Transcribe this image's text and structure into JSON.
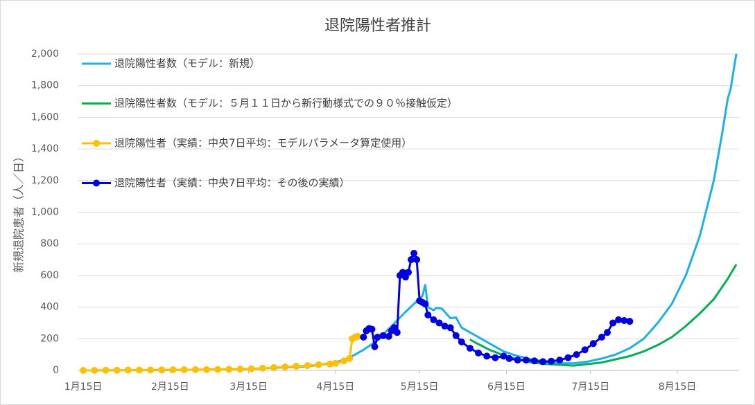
{
  "chart_data": {
    "type": "line",
    "title": "退院陽性者推計",
    "y_label": "新規退院患者（人／日）",
    "xlim": [
      -2,
      234
    ],
    "ylim": [
      0,
      2000
    ],
    "xticks": [
      {
        "value": 0,
        "label": "1月15日"
      },
      {
        "value": 31,
        "label": "2月15日"
      },
      {
        "value": 59,
        "label": "3月15日"
      },
      {
        "value": 90,
        "label": "4月15日"
      },
      {
        "value": 120,
        "label": "5月15日"
      },
      {
        "value": 151,
        "label": "6月15日"
      },
      {
        "value": 181,
        "label": "7月15日"
      },
      {
        "value": 212,
        "label": "8月15日"
      }
    ],
    "yticks": [
      0,
      {
        "value": 200,
        "label": "200"
      },
      {
        "value": 400,
        "label": "400"
      },
      {
        "value": 600,
        "label": "600"
      },
      {
        "value": 800,
        "label": "800"
      },
      {
        "value": 1000,
        "label": "1,000"
      },
      {
        "value": 1200,
        "label": "1,200"
      },
      {
        "value": 1400,
        "label": "1,400"
      },
      {
        "value": 1600,
        "label": "1,600"
      },
      {
        "value": 1800,
        "label": "1,800"
      },
      {
        "value": 2000,
        "label": "2,000"
      }
    ],
    "grid": true,
    "legend": "upper-left",
    "series": [
      {
        "name": "退院陽性者数（モデル：新規）",
        "color": "#1ab0e8",
        "markers": false,
        "x": [
          0,
          30,
          60,
          80,
          90,
          95,
          100,
          105,
          110,
          115,
          118,
          121,
          122,
          123,
          125,
          126,
          128,
          131,
          133,
          135,
          140,
          145,
          150,
          155,
          160,
          165,
          170,
          175,
          180,
          185,
          190,
          195,
          200,
          205,
          210,
          215,
          220,
          225,
          228,
          230,
          231,
          233
        ],
        "values": [
          0,
          2,
          10,
          25,
          50,
          80,
          130,
          190,
          280,
          370,
          420,
          470,
          540,
          400,
          380,
          395,
          390,
          330,
          335,
          270,
          220,
          170,
          120,
          90,
          70,
          55,
          45,
          45,
          55,
          75,
          100,
          140,
          200,
          300,
          420,
          600,
          850,
          1200,
          1500,
          1720,
          1780,
          2000
        ]
      },
      {
        "name": "退院陽性者数（モデル：５月１１日から新行動様式での９０％接触仮定）",
        "color": "#00b050",
        "markers": false,
        "x": [
          138,
          140,
          145,
          150,
          155,
          160,
          165,
          170,
          175,
          180,
          185,
          190,
          195,
          200,
          205,
          210,
          215,
          220,
          225,
          230,
          233
        ],
        "values": [
          195,
          175,
          130,
          95,
          70,
          50,
          40,
          35,
          30,
          40,
          50,
          70,
          90,
          120,
          160,
          210,
          280,
          360,
          450,
          580,
          670
        ]
      },
      {
        "name": "退院陽性者（実績：中央7日平均：モデルパラメータ算定使用）",
        "color": "#ffc000",
        "markers": true,
        "x": [
          0,
          4,
          8,
          12,
          16,
          20,
          24,
          28,
          32,
          36,
          40,
          44,
          48,
          52,
          56,
          60,
          64,
          68,
          72,
          76,
          80,
          84,
          88,
          90,
          93,
          95,
          96,
          97,
          98
        ],
        "values": [
          0,
          0,
          1,
          1,
          2,
          2,
          3,
          3,
          4,
          4,
          5,
          5,
          6,
          7,
          8,
          10,
          14,
          18,
          22,
          26,
          30,
          36,
          40,
          45,
          60,
          75,
          200,
          210,
          215
        ]
      },
      {
        "name": "退院陽性者（実績：中央7日平均：その後の実績）",
        "color": "#0000e0",
        "markers": true,
        "x": [
          100,
          101,
          102,
          103,
          104,
          105,
          107,
          109,
          110,
          111,
          112,
          113,
          114,
          115,
          116,
          117,
          118,
          119,
          120,
          121,
          122,
          123,
          125,
          127,
          129,
          131,
          133,
          135,
          138,
          141,
          144,
          147,
          150,
          152,
          155,
          158,
          161,
          164,
          167,
          170,
          173,
          176,
          179,
          182,
          185,
          187,
          189,
          191,
          193,
          195
        ],
        "values": [
          210,
          250,
          265,
          260,
          150,
          210,
          220,
          215,
          250,
          270,
          240,
          600,
          620,
          590,
          620,
          700,
          740,
          700,
          440,
          430,
          420,
          350,
          320,
          300,
          280,
          270,
          220,
          180,
          140,
          110,
          90,
          80,
          90,
          75,
          65,
          65,
          60,
          55,
          58,
          65,
          80,
          100,
          130,
          170,
          210,
          240,
          300,
          320,
          315,
          310
        ]
      }
    ]
  }
}
